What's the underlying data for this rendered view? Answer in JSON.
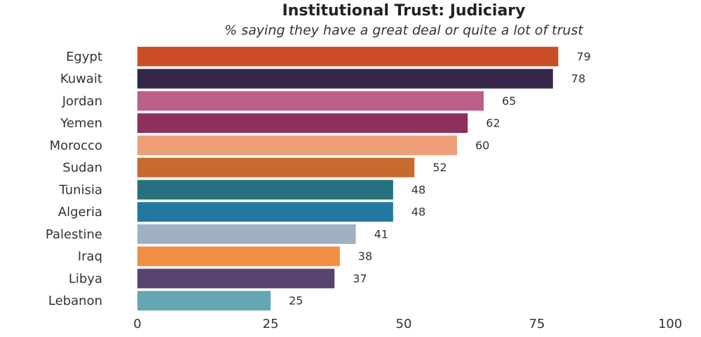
{
  "chart_data": {
    "type": "bar",
    "orientation": "horizontal",
    "title": "Institutional Trust: Judiciary",
    "subtitle": "% saying they have a great deal or quite a lot of trust",
    "categories": [
      "Egypt",
      "Kuwait",
      "Jordan",
      "Yemen",
      "Morocco",
      "Sudan",
      "Tunisia",
      "Algeria",
      "Palestine",
      "Iraq",
      "Libya",
      "Lebanon"
    ],
    "values": [
      79,
      78,
      65,
      62,
      60,
      52,
      48,
      48,
      41,
      38,
      37,
      25
    ],
    "colors": [
      "#cc4e27",
      "#35264a",
      "#b86086",
      "#8e2f5e",
      "#ee9f78",
      "#c76a2f",
      "#27707e",
      "#2278a0",
      "#9fb1c2",
      "#f08f43",
      "#5a4370",
      "#63a8b3"
    ],
    "xlim": [
      0,
      100
    ],
    "xticks": [
      0,
      25,
      50,
      75,
      100
    ],
    "grid": false
  }
}
